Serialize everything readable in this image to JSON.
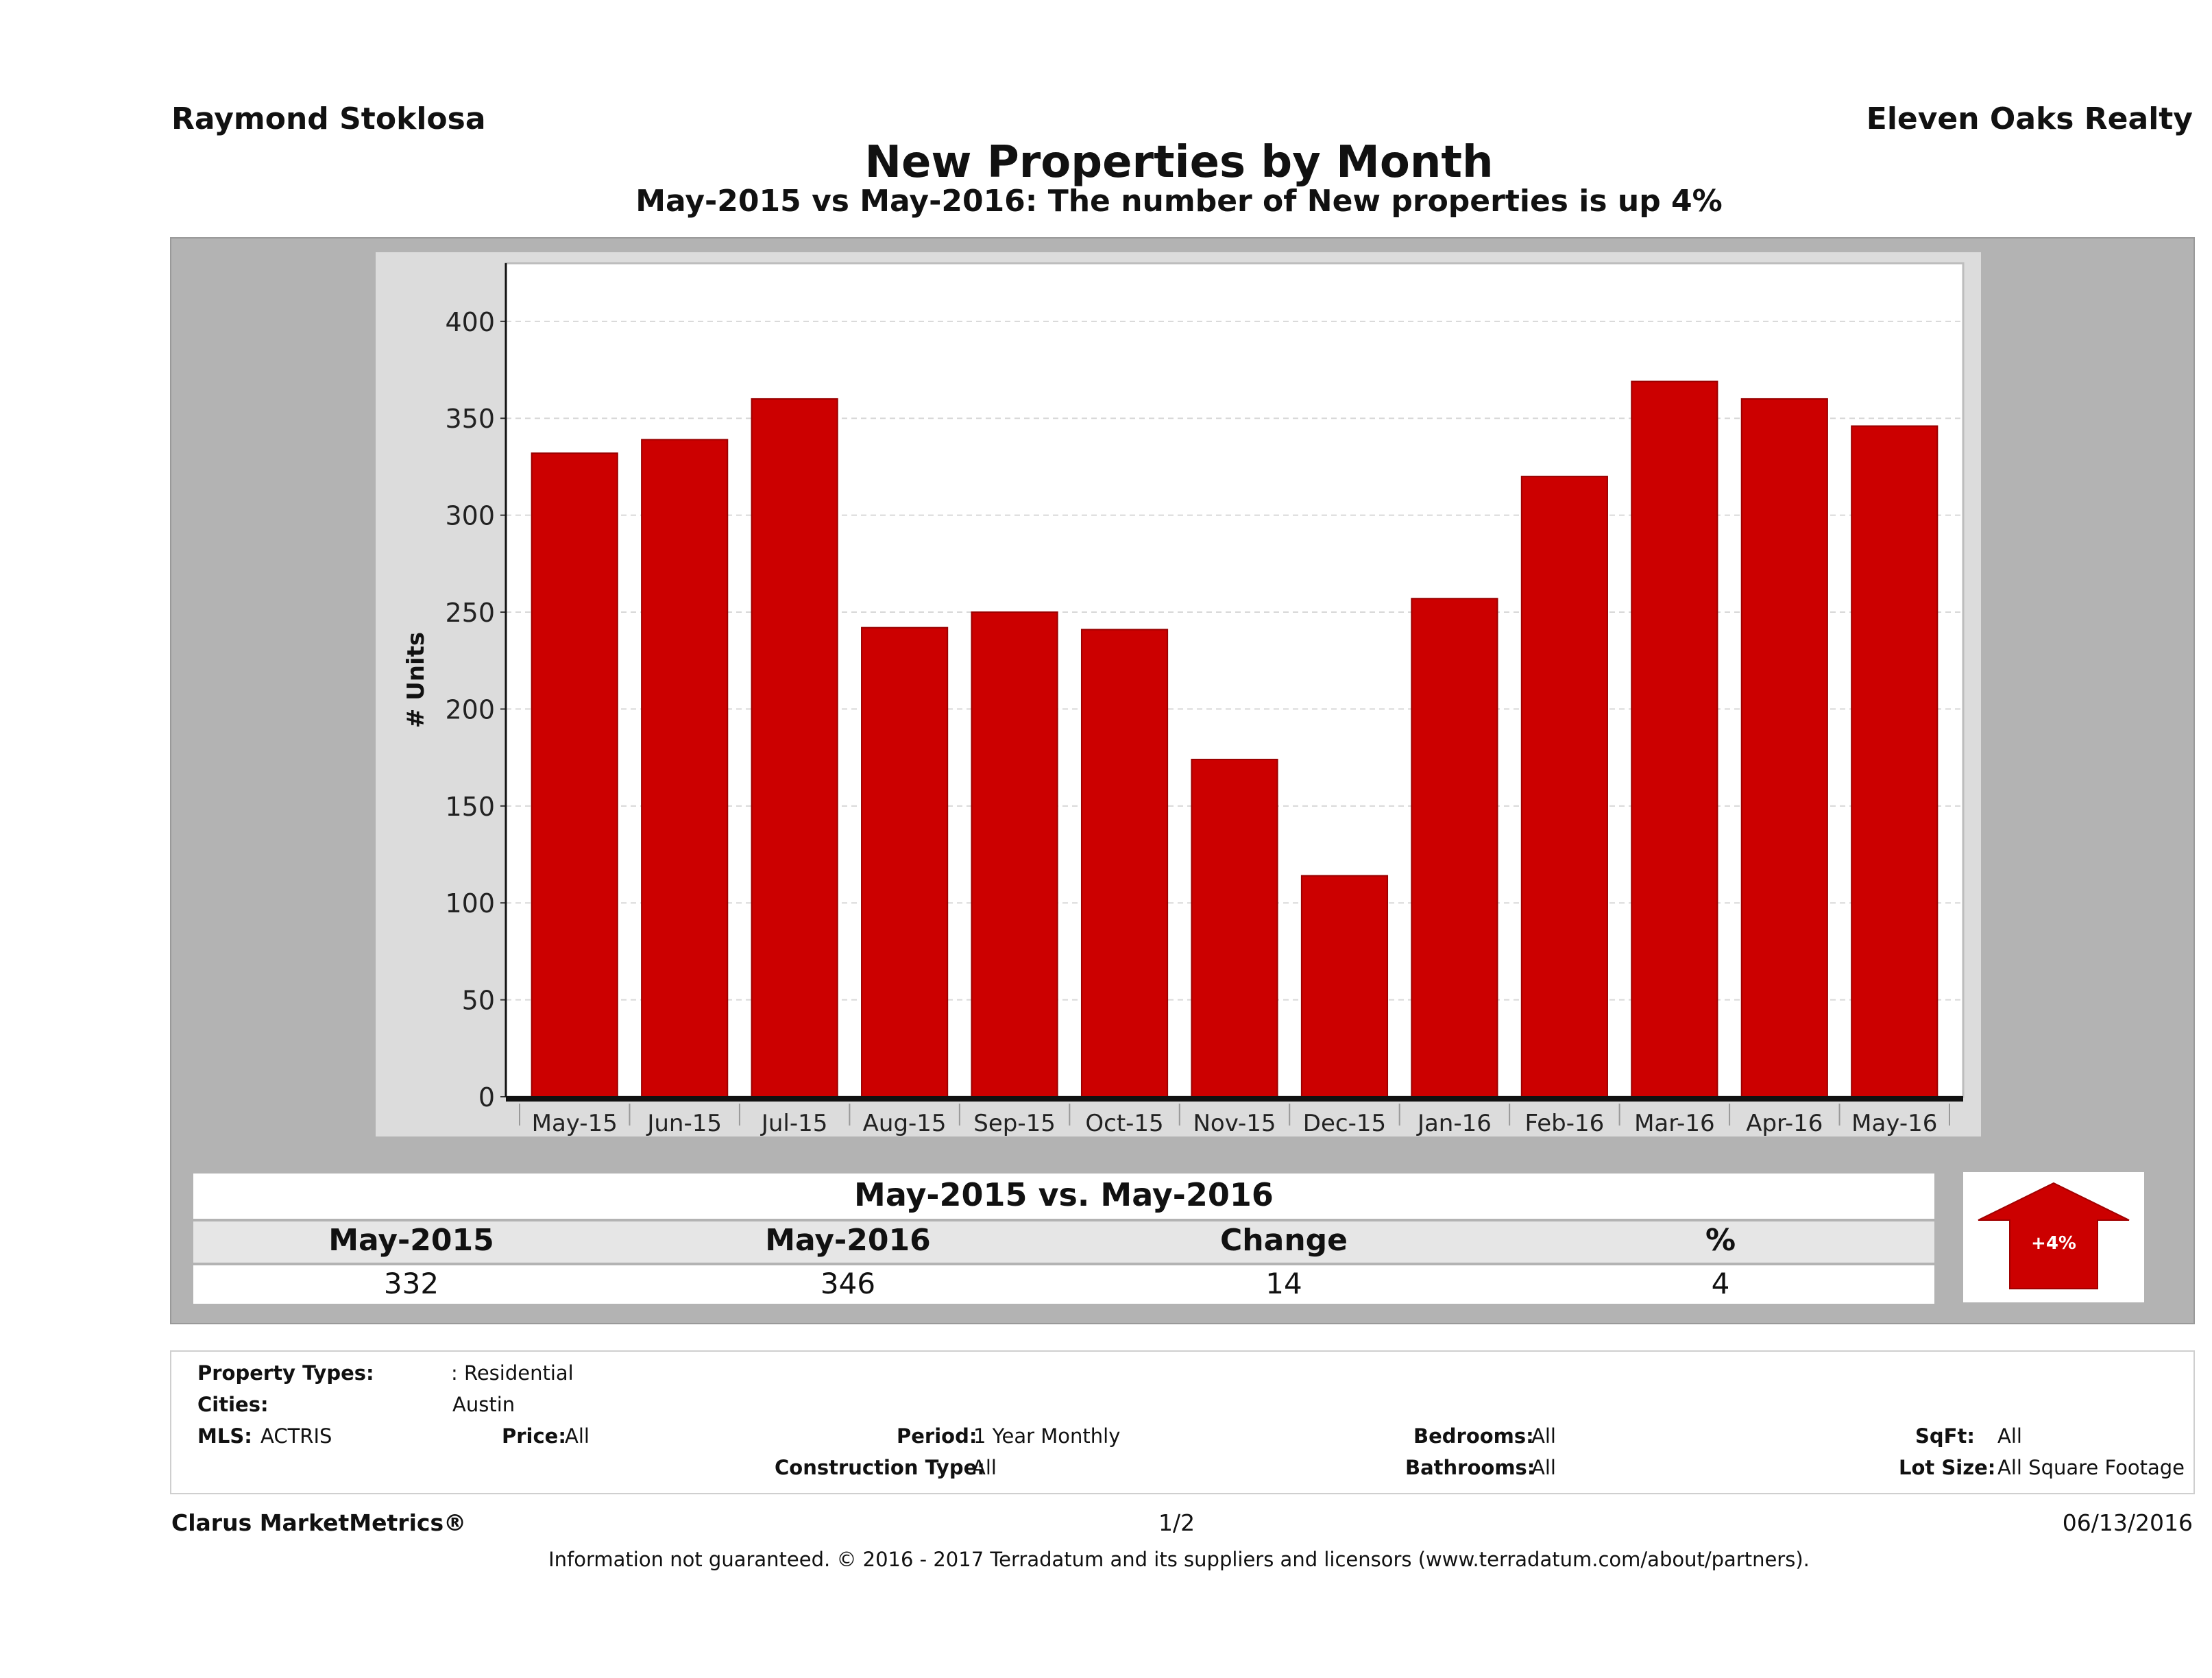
{
  "header": {
    "agent": "Raymond Stoklosa",
    "brokerage": "Eleven Oaks Realty",
    "title": "New Properties by Month",
    "subtitle": "May-2015 vs May-2016: The number of New  properties is up 4%"
  },
  "chart_data": {
    "type": "bar",
    "ylabel": "# Units",
    "ylim": [
      0,
      430
    ],
    "yticks": [
      0,
      50,
      100,
      150,
      200,
      250,
      300,
      350,
      400
    ],
    "categories": [
      "May-15",
      "Jun-15",
      "Jul-15",
      "Aug-15",
      "Sep-15",
      "Oct-15",
      "Nov-15",
      "Dec-15",
      "Jan-16",
      "Feb-16",
      "Mar-16",
      "Apr-16",
      "May-16"
    ],
    "values": [
      332,
      339,
      360,
      242,
      250,
      241,
      174,
      114,
      257,
      320,
      369,
      360,
      346
    ],
    "bar_color": "#cc0000",
    "grid": true
  },
  "summary": {
    "title": "May-2015 vs. May-2016",
    "labels": [
      "May-2015",
      "May-2016",
      "Change",
      "%"
    ],
    "values": [
      "332",
      "346",
      "14",
      "4"
    ],
    "arrow_label": "+4%",
    "arrow_color": "#cc0000"
  },
  "filters": {
    "property_types_label": "Property Types:",
    "property_types_value": ": Residential",
    "cities_label": "Cities:",
    "cities_value": "Austin",
    "mls_label": "MLS:",
    "mls_value": "ACTRIS",
    "price_label": "Price:",
    "price_value": "All",
    "period_label": "Period:",
    "period_value": "1 Year Monthly",
    "construction_label": "Construction Type:",
    "construction_value": "All",
    "bedrooms_label": "Bedrooms:",
    "bedrooms_value": "All",
    "bathrooms_label": "Bathrooms:",
    "bathrooms_value": "All",
    "sqft_label": "SqFt:",
    "sqft_value": "All",
    "lot_label": "Lot Size:",
    "lot_value": "All Square Footage"
  },
  "footer": {
    "left": "Clarus MarketMetrics®",
    "page": "1/2",
    "date": "06/13/2016",
    "disclaimer": "Information not guaranteed. © 2016 - 2017 Terradatum and its suppliers and licensors (www.terradatum.com/about/partners)."
  }
}
